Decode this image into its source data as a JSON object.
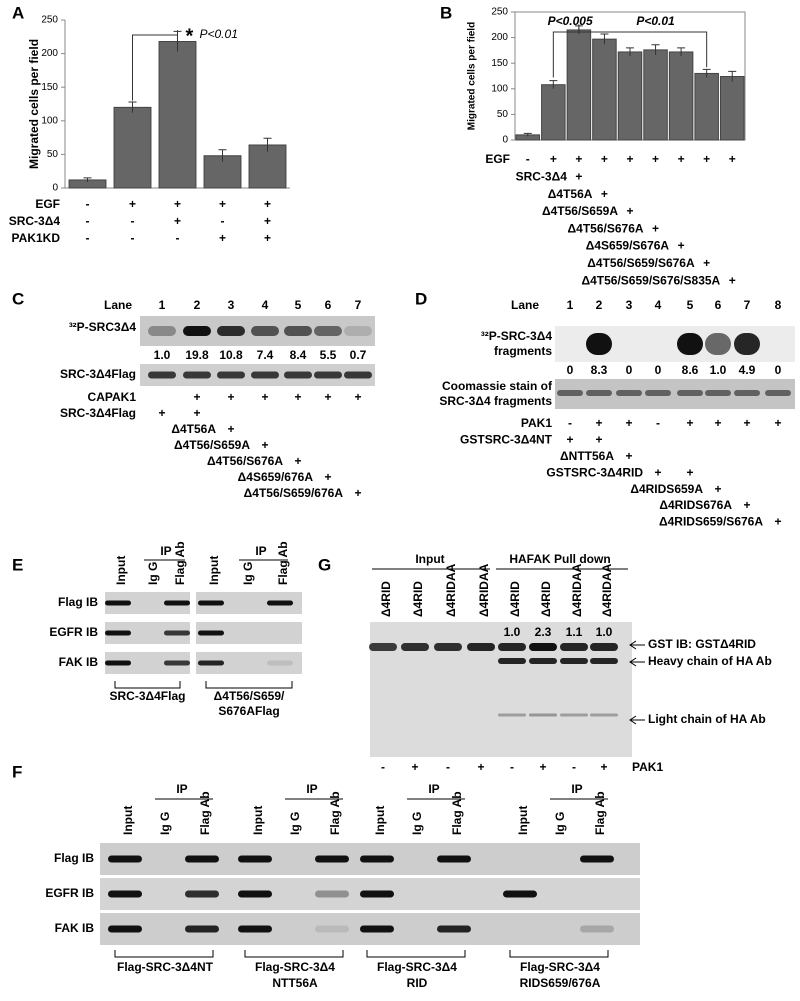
{
  "chart_data": [
    {
      "type": "bar",
      "panel": "A",
      "ylabel": "Migrated cells per field",
      "color": "#666666",
      "values": [
        12,
        120,
        218,
        48,
        64
      ],
      "errors": [
        3,
        8,
        15,
        9,
        10
      ],
      "ylim": [
        0,
        250
      ],
      "yticks": [
        0,
        50,
        100,
        150,
        200,
        250
      ],
      "annotations": [
        "*",
        "P<0.01"
      ],
      "conditions": [
        {
          "label": "EGF",
          "signs": [
            "-",
            "+",
            "+",
            "+",
            "+"
          ]
        },
        {
          "label": "SRC-3Δ4",
          "signs": [
            "-",
            "-",
            "+",
            "-",
            "+"
          ]
        },
        {
          "label": "PAK1KD",
          "signs": [
            "-",
            "-",
            "-",
            "+",
            "+"
          ]
        }
      ]
    },
    {
      "type": "bar",
      "panel": "B",
      "ylabel": "Migrated cells per field",
      "color": "#666666",
      "values": [
        10,
        108,
        215,
        197,
        172,
        176,
        172,
        130,
        124
      ],
      "errors": [
        3,
        8,
        8,
        10,
        8,
        10,
        8,
        8,
        10
      ],
      "ylim": [
        0,
        250
      ],
      "yticks": [
        0,
        50,
        100,
        150,
        200,
        250
      ],
      "annotations": [
        "P<0.005",
        "P<0.01"
      ],
      "conditions": [
        {
          "label": "EGF",
          "signs": [
            "-",
            "+",
            "+",
            "+",
            "+",
            "+",
            "+",
            "+",
            "+"
          ]
        },
        {
          "label": "SRC-3Δ4",
          "signs": [
            null,
            null,
            "+",
            null,
            null,
            null,
            null,
            null,
            null
          ]
        },
        {
          "label": "Δ4T56A",
          "signs": [
            null,
            null,
            null,
            "+",
            null,
            null,
            null,
            null,
            null
          ]
        },
        {
          "label": "Δ4T56/S659A",
          "signs": [
            null,
            null,
            null,
            null,
            "+",
            null,
            null,
            null,
            null
          ]
        },
        {
          "label": "Δ4T56/S676A",
          "signs": [
            null,
            null,
            null,
            null,
            null,
            "+",
            null,
            null,
            null
          ]
        },
        {
          "label": "Δ4S659/S676A",
          "signs": [
            null,
            null,
            null,
            null,
            null,
            null,
            "+",
            null,
            null
          ]
        },
        {
          "label": "Δ4T56/S659/S676A",
          "signs": [
            null,
            null,
            null,
            null,
            null,
            null,
            null,
            "+",
            null
          ]
        },
        {
          "label": "Δ4T56/S659/S676/S835A",
          "signs": [
            null,
            null,
            null,
            null,
            null,
            null,
            null,
            null,
            "+"
          ]
        }
      ]
    }
  ],
  "panels": {
    "C": {
      "label": "C",
      "lane_title": "Lane",
      "lanes": [
        "1",
        "2",
        "3",
        "4",
        "5",
        "6",
        "7"
      ],
      "blots": [
        [
          "³²P-SRC3Δ4"
        ],
        [
          "SRC-3Δ4Flag"
        ]
      ],
      "quant": [
        "1.0",
        "19.8",
        "10.8",
        "7.4",
        "8.4",
        "5.5",
        "0.7"
      ],
      "conditions": [
        {
          "label": "CAPAK1",
          "signs": [
            null,
            "+",
            "+",
            "+",
            "+",
            "+",
            "+"
          ]
        },
        {
          "label": "SRC-3Δ4Flag",
          "signs": [
            "+",
            "+",
            null,
            null,
            null,
            null,
            null
          ]
        },
        {
          "label": "Δ4T56A",
          "signs": [
            null,
            null,
            "+",
            null,
            null,
            null,
            null
          ]
        },
        {
          "label": "Δ4T56/S659A",
          "signs": [
            null,
            null,
            null,
            "+",
            null,
            null,
            null
          ]
        },
        {
          "label": "Δ4T56/S676A",
          "signs": [
            null,
            null,
            null,
            null,
            "+",
            null,
            null
          ]
        },
        {
          "label": "Δ4S659/676A",
          "signs": [
            null,
            null,
            null,
            null,
            null,
            "+",
            null
          ]
        },
        {
          "label": "Δ4T56/S659/676A",
          "signs": [
            null,
            null,
            null,
            null,
            null,
            null,
            "+"
          ]
        }
      ]
    },
    "D": {
      "label": "D",
      "lane_title": "Lane",
      "lanes": [
        "1",
        "2",
        "3",
        "4",
        "5",
        "6",
        "7",
        "8"
      ],
      "blots": [
        [
          "³²P-SRC-3Δ4",
          "fragments"
        ],
        [
          "Coomassie stain of",
          "SRC-3Δ4 fragments"
        ]
      ],
      "quant": [
        "0",
        "8.3",
        "0",
        "0",
        "8.6",
        "1.0",
        "4.9",
        "0"
      ],
      "conditions": [
        {
          "label": "PAK1",
          "signs": [
            "-",
            "+",
            "+",
            "-",
            "+",
            "+",
            "+",
            "+"
          ]
        },
        {
          "label": "GSTSRC-3Δ4NT",
          "signs": [
            "+",
            "+",
            null,
            null,
            null,
            null,
            null,
            null
          ]
        },
        {
          "label": "ΔNTT56A",
          "signs": [
            null,
            null,
            "+",
            null,
            null,
            null,
            null,
            null
          ]
        },
        {
          "label": "GSTSRC-3Δ4RID",
          "signs": [
            null,
            null,
            null,
            "+",
            "+",
            null,
            null,
            null
          ]
        },
        {
          "label": "Δ4RIDS659A",
          "signs": [
            null,
            null,
            null,
            null,
            null,
            "+",
            null,
            null
          ]
        },
        {
          "label": "Δ4RIDS676A",
          "signs": [
            null,
            null,
            null,
            null,
            null,
            null,
            "+",
            null
          ]
        },
        {
          "label": "Δ4RIDS659/S676A",
          "signs": [
            null,
            null,
            null,
            null,
            null,
            null,
            null,
            "+"
          ]
        }
      ]
    },
    "E": {
      "label": "E",
      "ip": "IP",
      "lane_headers": [
        "Input",
        "Ig G",
        "Flag Ab"
      ],
      "rows": [
        "Flag IB",
        "EGFR IB",
        "FAK IB"
      ],
      "groups": [
        [
          "SRC-3Δ4Flag"
        ],
        [
          "Δ4T56/S659/",
          "S676AFlag"
        ]
      ]
    },
    "F": {
      "label": "F",
      "ip": "IP",
      "lane_headers": [
        "Input",
        "Ig G",
        "Flag Ab"
      ],
      "rows": [
        "Flag IB",
        "EGFR IB",
        "FAK IB"
      ],
      "groups": [
        [
          "Flag-SRC-3Δ4NT"
        ],
        [
          "Flag-SRC-3Δ4",
          "NTT56A"
        ],
        [
          "Flag-SRC-3Δ4",
          "RID"
        ],
        [
          "Flag-SRC-3Δ4",
          "RIDS659/676A"
        ]
      ]
    },
    "G": {
      "label": "G",
      "groups": [
        "Input",
        "HAFAK Pull down"
      ],
      "lanes": [
        "Δ4RID",
        "Δ4RID",
        "Δ4RIDAA",
        "Δ4RIDAA",
        "Δ4RID",
        "Δ4RID",
        "Δ4RIDAA",
        "Δ4RIDAA"
      ],
      "quant": [
        "1.0",
        "2.3",
        "1.1",
        "1.0"
      ],
      "arrows": [
        "GST IB: GSTΔ4RID",
        "Heavy chain of HA Ab",
        "Light chain of HA Ab"
      ],
      "condition": {
        "label": "PAK1",
        "signs": [
          "-",
          "+",
          "-",
          "+",
          "-",
          "+",
          "-",
          "+"
        ]
      }
    }
  }
}
